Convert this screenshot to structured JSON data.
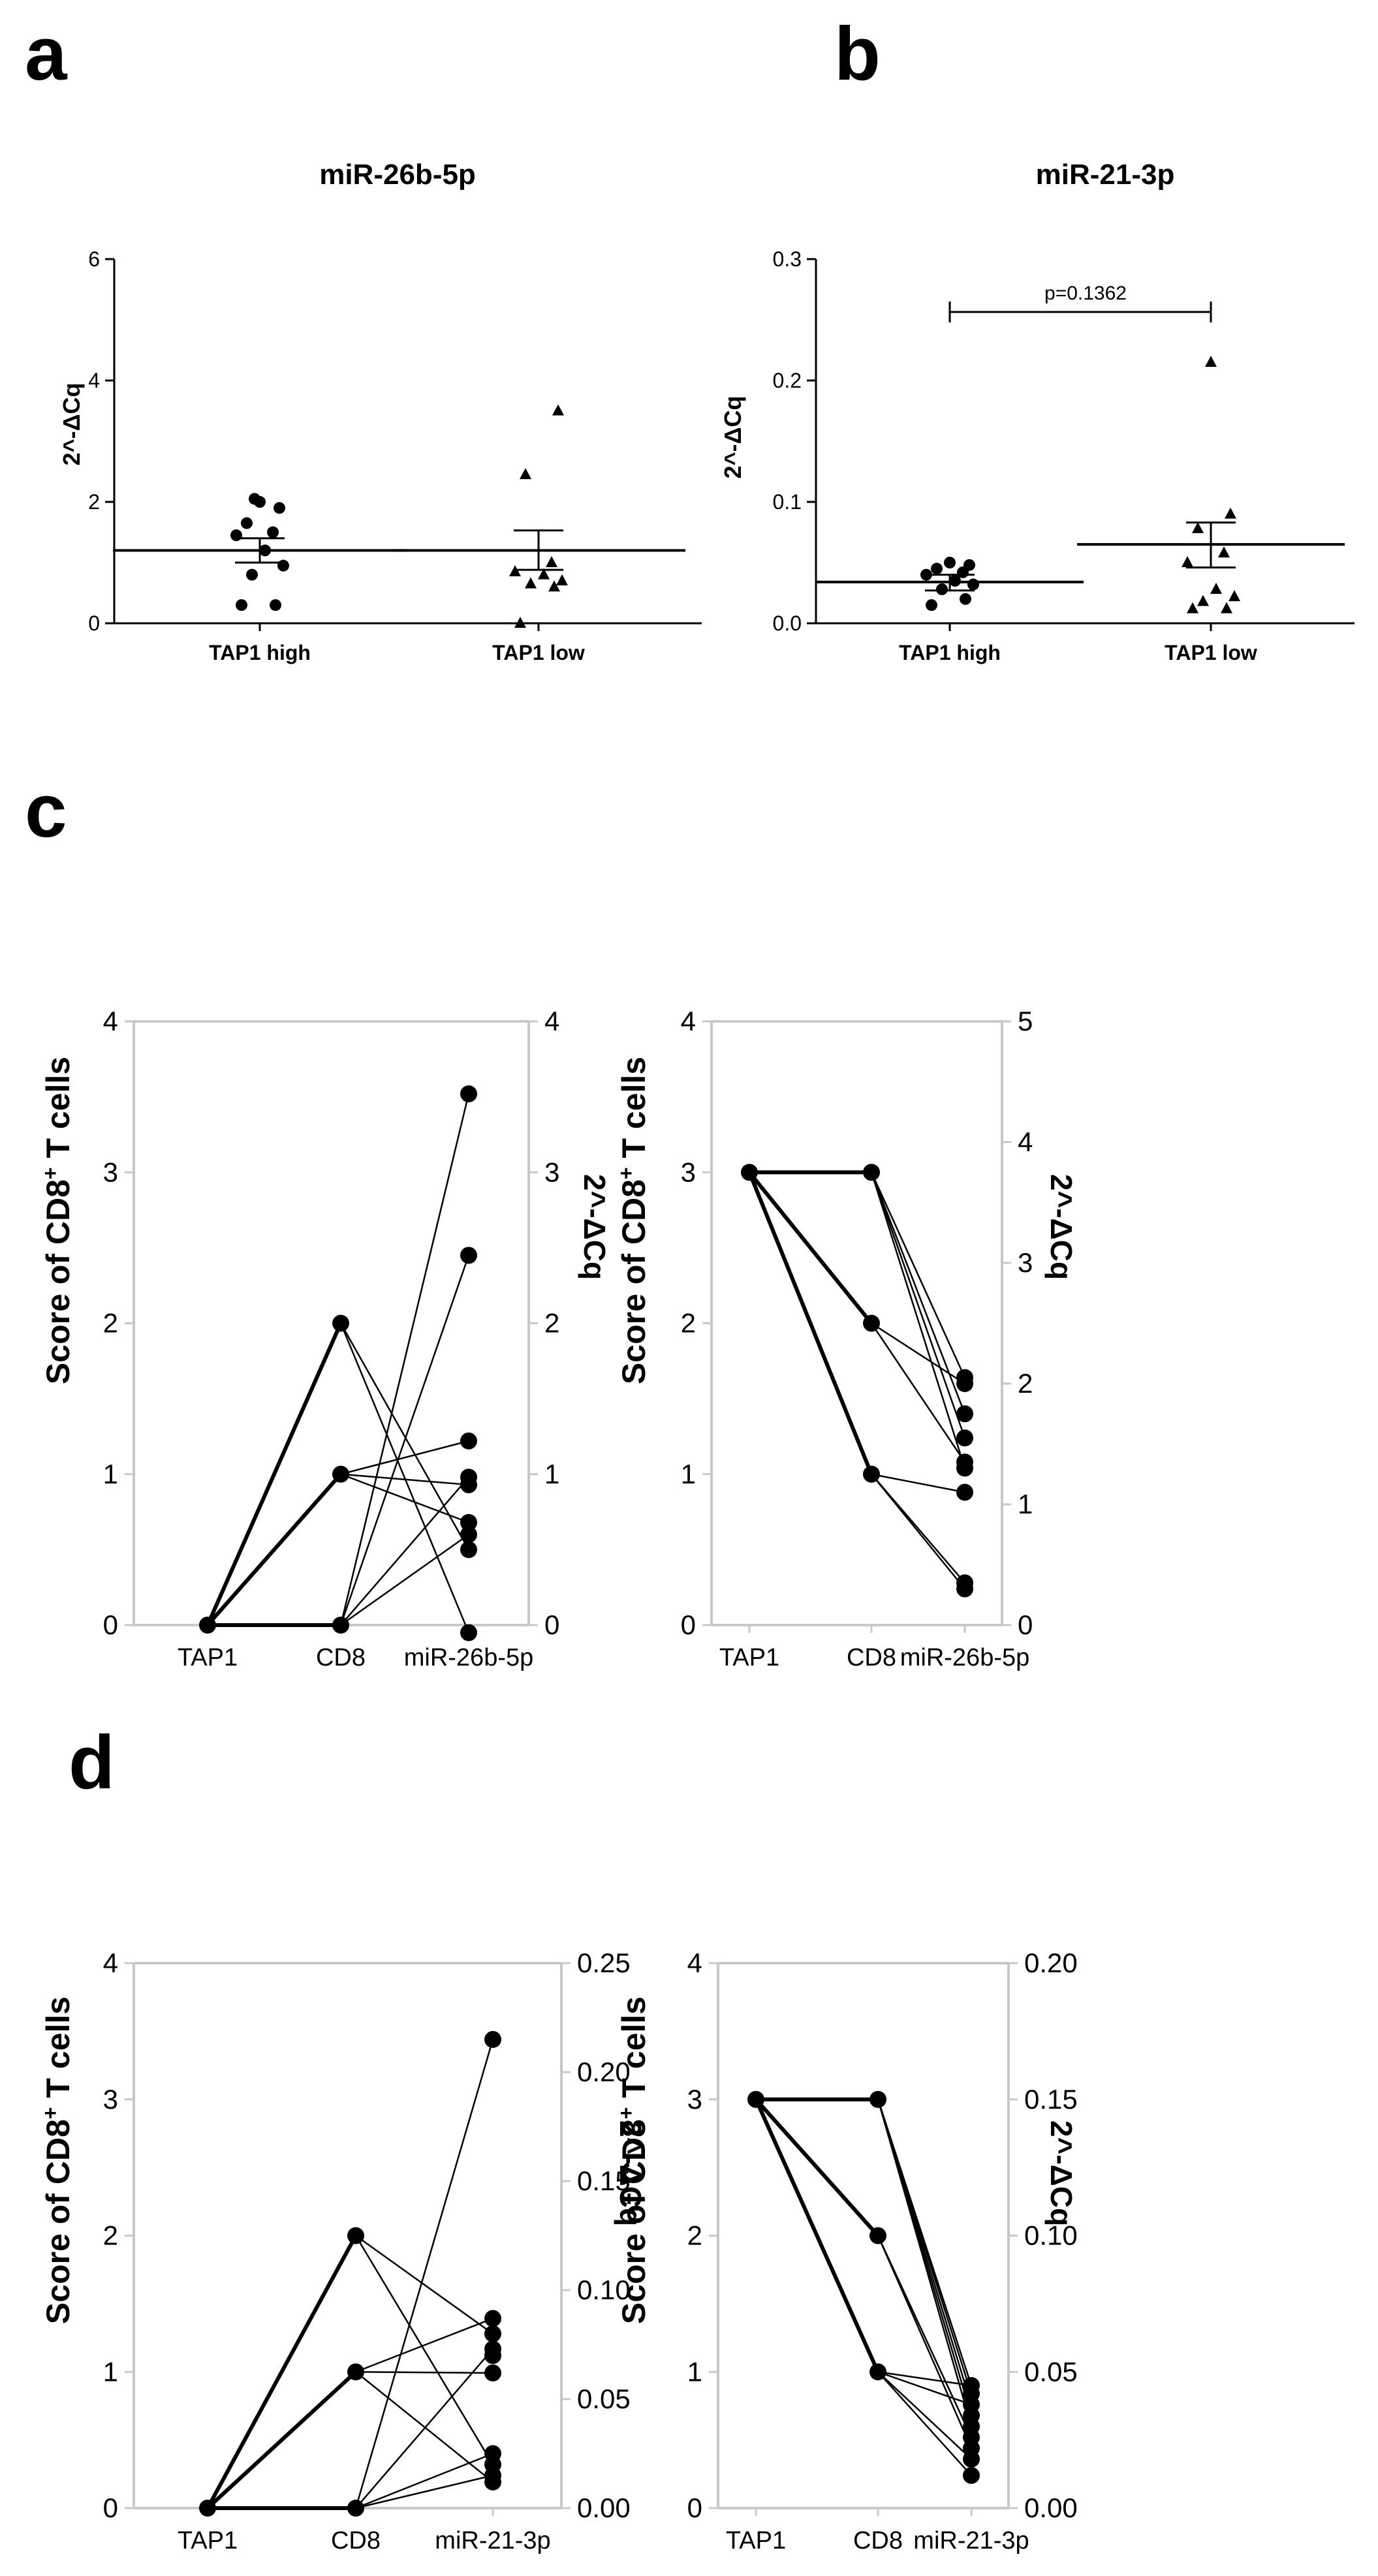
{
  "panels": {
    "a": {
      "letter": "a",
      "title": "miR-26b-5p",
      "ylabel": "2^-ΔCq",
      "yticks": [
        "0",
        "2",
        "4",
        "6"
      ],
      "categories": [
        "TAP1 high",
        "TAP1 low"
      ]
    },
    "b": {
      "letter": "b",
      "title": "miR-21-3p",
      "ylabel": "2^-ΔCq",
      "yticks": [
        "0.0",
        "0.1",
        "0.2",
        "0.3"
      ],
      "categories": [
        "TAP1 high",
        "TAP1 low"
      ],
      "annotation": "p=0.1362"
    },
    "c": {
      "letter": "c",
      "left": {
        "left_ylabel": "Score of CD8",
        "left_ylabel_sup": "+",
        "left_ylabel_tail": " T cells",
        "right_ylabel": "2^-ΔCq",
        "xticks": [
          "TAP1",
          "CD8",
          "miR-26b-5p"
        ],
        "left_yticks": [
          "0",
          "1",
          "2",
          "3",
          "4"
        ],
        "right_yticks": [
          "0",
          "1",
          "2",
          "3",
          "4"
        ]
      },
      "right": {
        "left_ylabel": "Score of CD8",
        "left_ylabel_sup": "+",
        "left_ylabel_tail": " T cells",
        "right_ylabel": "2^-ΔCq",
        "xticks": [
          "TAP1",
          "CD8",
          "miR-26b-5p"
        ],
        "left_yticks": [
          "0",
          "1",
          "2",
          "3",
          "4"
        ],
        "right_yticks": [
          "0",
          "1",
          "2",
          "3",
          "4",
          "5"
        ]
      }
    },
    "d": {
      "letter": "d",
      "left": {
        "left_ylabel": "Score of CD8",
        "left_ylabel_sup": "+",
        "left_ylabel_tail": " T cells",
        "right_ylabel": "2^-ΔCq",
        "xticks": [
          "TAP1",
          "CD8",
          "miR-21-3p"
        ],
        "left_yticks": [
          "0",
          "1",
          "2",
          "3",
          "4"
        ],
        "right_yticks": [
          "0.00",
          "0.05",
          "0.10",
          "0.15",
          "0.20",
          "0.25"
        ]
      },
      "right": {
        "left_ylabel": "Score of CD8",
        "left_ylabel_sup": "+",
        "left_ylabel_tail": " T cells",
        "right_ylabel": "2^-ΔCq",
        "xticks": [
          "TAP1",
          "CD8",
          "miR-21-3p"
        ],
        "left_yticks": [
          "0",
          "1",
          "2",
          "3",
          "4"
        ],
        "right_yticks": [
          "0.00",
          "0.05",
          "0.10",
          "0.15",
          "0.20"
        ]
      }
    }
  },
  "chart_data": [
    {
      "panel": "a",
      "type": "scatter",
      "title": "miR-26b-5p",
      "ylabel": "2^-ΔCq",
      "ylim": [
        0,
        6
      ],
      "categories": [
        "TAP1 high",
        "TAP1 low"
      ],
      "series": [
        {
          "values": [
            0.3,
            0.3,
            0.8,
            0.95,
            1.2,
            1.45,
            1.5,
            1.65,
            1.9,
            2.0,
            2.05
          ],
          "mean": 1.2,
          "sem_low": 1.0,
          "sem_high": 1.4
        },
        {
          "values": [
            0.0,
            0.6,
            0.65,
            0.7,
            0.8,
            0.85,
            1.0,
            2.45,
            3.5
          ],
          "mean": 1.2,
          "sem_low": 0.88,
          "sem_high": 1.53
        }
      ]
    },
    {
      "panel": "b",
      "type": "scatter",
      "title": "miR-21-3p",
      "ylabel": "2^-ΔCq",
      "ylim": [
        0,
        0.3
      ],
      "categories": [
        "TAP1 high",
        "TAP1 low"
      ],
      "annotation": "p=0.1362",
      "series": [
        {
          "values": [
            0.015,
            0.02,
            0.028,
            0.032,
            0.035,
            0.04,
            0.042,
            0.045,
            0.048,
            0.05
          ],
          "mean": 0.034,
          "sem_low": 0.027,
          "sem_high": 0.04
        },
        {
          "values": [
            0.012,
            0.012,
            0.018,
            0.022,
            0.028,
            0.05,
            0.058,
            0.078,
            0.09,
            0.215
          ],
          "mean": 0.065,
          "sem_low": 0.046,
          "sem_high": 0.083
        }
      ]
    },
    {
      "panel": "c-left",
      "type": "line",
      "x": [
        "TAP1",
        "CD8",
        "miR-26b-5p"
      ],
      "ylim_left": [
        0,
        4
      ],
      "ylim_right": [
        0,
        4
      ],
      "tap1": [
        0
      ],
      "cd8": [
        0,
        1,
        2
      ],
      "mirna": [
        3.52,
        2.45,
        1.22,
        0.98,
        0.93,
        0.68,
        0.6,
        0.5,
        -0.05
      ],
      "links_cd8_mirna": [
        [
          0,
          3.52
        ],
        [
          0,
          2.45
        ],
        [
          0,
          0.98
        ],
        [
          0,
          0.6
        ],
        [
          1,
          0.93
        ],
        [
          1,
          0.68
        ],
        [
          1,
          1.22
        ],
        [
          2,
          0.5
        ],
        [
          2,
          -0.05
        ]
      ]
    },
    {
      "panel": "c-right",
      "type": "line",
      "x": [
        "TAP1",
        "CD8",
        "miR-26b-5p"
      ],
      "ylim_left": [
        0,
        4
      ],
      "ylim_right": [
        0,
        5
      ],
      "tap1": [
        3
      ],
      "cd8": [
        3,
        2,
        1
      ],
      "mirna": [
        2.05,
        2.0,
        1.75,
        1.55,
        1.35,
        1.3,
        1.1,
        0.35,
        0.3
      ],
      "links_cd8_mirna": [
        [
          3,
          2.05
        ],
        [
          3,
          1.75
        ],
        [
          3,
          1.55
        ],
        [
          3,
          1.3
        ],
        [
          2,
          2.0
        ],
        [
          2,
          1.35
        ],
        [
          1,
          1.1
        ],
        [
          1,
          0.35
        ],
        [
          1,
          0.3
        ]
      ]
    },
    {
      "panel": "d-left",
      "type": "line",
      "x": [
        "TAP1",
        "CD8",
        "miR-21-3p"
      ],
      "ylim_left": [
        0,
        4
      ],
      "ylim_right": [
        0,
        0.25
      ],
      "tap1": [
        0
      ],
      "cd8": [
        0,
        1,
        2
      ],
      "mirna": [
        0.215,
        0.087,
        0.08,
        0.073,
        0.07,
        0.062,
        0.025,
        0.02,
        0.015,
        0.012
      ],
      "links_cd8_mirna": [
        [
          0,
          0.215
        ],
        [
          0,
          0.073
        ],
        [
          0,
          0.025
        ],
        [
          0,
          0.015
        ],
        [
          1,
          0.087
        ],
        [
          1,
          0.062
        ],
        [
          1,
          0.012
        ],
        [
          2,
          0.08
        ],
        [
          2,
          0.02
        ]
      ]
    },
    {
      "panel": "d-right",
      "type": "line",
      "x": [
        "TAP1",
        "CD8",
        "miR-21-3p"
      ],
      "ylim_left": [
        0,
        4
      ],
      "ylim_right": [
        0,
        0.2
      ],
      "tap1": [
        3
      ],
      "cd8": [
        3,
        2,
        1
      ],
      "mirna": [
        0.045,
        0.042,
        0.038,
        0.034,
        0.03,
        0.026,
        0.022,
        0.018,
        0.012
      ],
      "links_cd8_mirna": [
        [
          3,
          0.045
        ],
        [
          3,
          0.042
        ],
        [
          3,
          0.038
        ],
        [
          3,
          0.034
        ],
        [
          3,
          0.03
        ],
        [
          2,
          0.026
        ],
        [
          2,
          0.022
        ],
        [
          1,
          0.045
        ],
        [
          1,
          0.038
        ],
        [
          1,
          0.018
        ],
        [
          1,
          0.012
        ]
      ]
    }
  ]
}
